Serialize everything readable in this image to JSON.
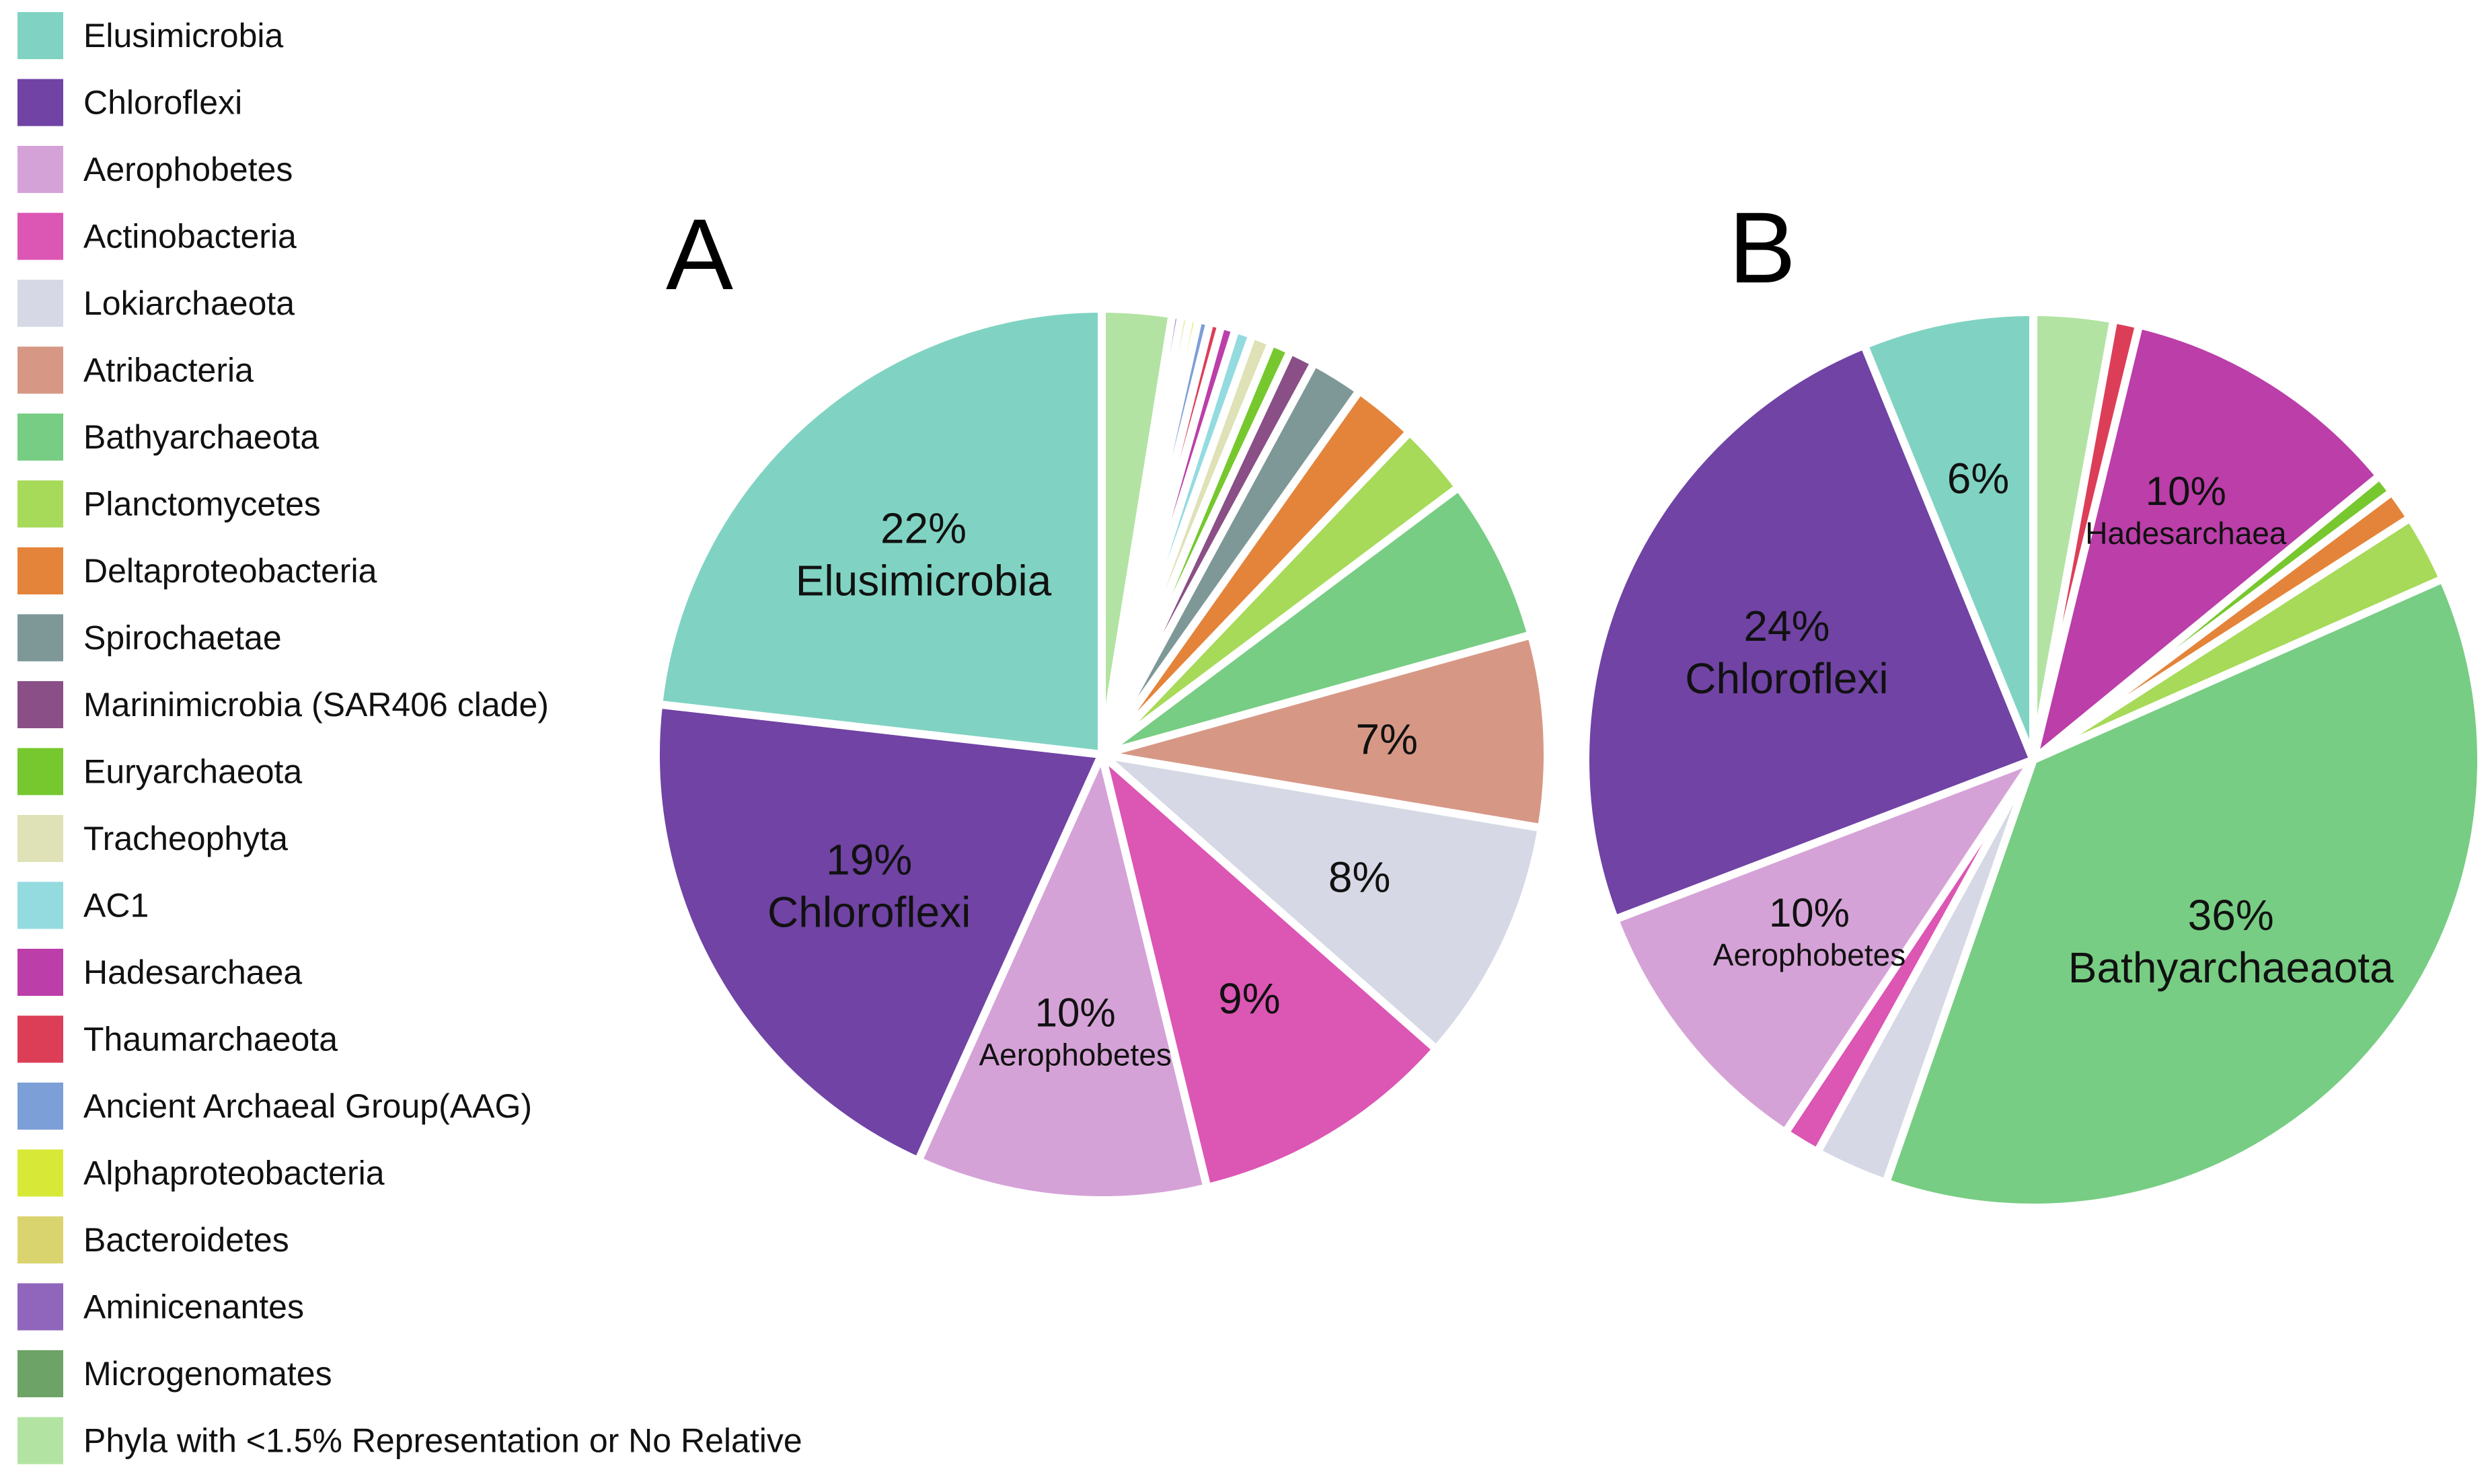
{
  "colors": {
    "Elusimicrobia": "#80d3c2",
    "Chloroflexi": "#7043a4",
    "Aerophobetes": "#d5a2d7",
    "Actinobacteria": "#dc56b4",
    "Lokiarchaeota": "#d6d8e5",
    "Atribacteria": "#d69885",
    "Bathyarchaeota": "#77cd83",
    "Planctomycetes": "#a6da58",
    "Deltaproteobacteria": "#e4843a",
    "Spirochaetae": "#7e9898",
    "Marinimicrobia": "#8a4f86",
    "Euryarchaeota": "#76c82e",
    "Tracheophyta": "#dfe1b6",
    "AC1": "#94dbe0",
    "Hadesarchaea": "#bb3ea9",
    "Thaumarchaeota": "#dc3e58",
    "AAG": "#7d9fd8",
    "Alphaproteobacteria": "#d7e936",
    "Bacteroidetes": "#dad46e",
    "Aminicenantes": "#9066bd",
    "Microgenomates": "#6da366",
    "Other": "#b3e3a3"
  },
  "legend": [
    {
      "label": "Elusimicrobia",
      "color_key": "Elusimicrobia"
    },
    {
      "label": "Chloroflexi",
      "color_key": "Chloroflexi"
    },
    {
      "label": "Aerophobetes",
      "color_key": "Aerophobetes"
    },
    {
      "label": "Actinobacteria",
      "color_key": "Actinobacteria"
    },
    {
      "label": "Lokiarchaeota",
      "color_key": "Lokiarchaeota"
    },
    {
      "label": "Atribacteria",
      "color_key": "Atribacteria"
    },
    {
      "label": "Bathyarchaeota",
      "color_key": "Bathyarchaeota"
    },
    {
      "label": "Planctomycetes",
      "color_key": "Planctomycetes"
    },
    {
      "label": "Deltaproteobacteria",
      "color_key": "Deltaproteobacteria"
    },
    {
      "label": "Spirochaetae",
      "color_key": "Spirochaetae"
    },
    {
      "label": "Marinimicrobia (SAR406 clade)",
      "color_key": "Marinimicrobia"
    },
    {
      "label": "Euryarchaeota",
      "color_key": "Euryarchaeota"
    },
    {
      "label": "Tracheophyta",
      "color_key": "Tracheophyta"
    },
    {
      "label": "AC1",
      "color_key": "AC1"
    },
    {
      "label": "Hadesarchaea",
      "color_key": "Hadesarchaea"
    },
    {
      "label": "Thaumarchaeota",
      "color_key": "Thaumarchaeota"
    },
    {
      "label": "Ancient Archaeal Group(AAG)",
      "color_key": "AAG"
    },
    {
      "label": "Alphaproteobacteria",
      "color_key": "Alphaproteobacteria"
    },
    {
      "label": "Bacteroidetes",
      "color_key": "Bacteroidetes"
    },
    {
      "label": "Aminicenantes",
      "color_key": "Aminicenantes"
    },
    {
      "label": "Microgenomates",
      "color_key": "Microgenomates"
    },
    {
      "label": "Phyla with <1.5% Representation or No Relative",
      "color_key": "Other"
    }
  ],
  "chart_data": [
    {
      "type": "pie",
      "title": "A",
      "start": "12 o'clock, clockwise",
      "slices": [
        {
          "name": "Phyla with <1.5% Representation or No Relative",
          "color_key": "Other",
          "value": 2.4
        },
        {
          "name": "Aminicenantes",
          "color_key": "Aminicenantes",
          "value": 0.3
        },
        {
          "name": "Bacteroidetes",
          "color_key": "Bacteroidetes",
          "value": 0.3
        },
        {
          "name": "Alphaproteobacteria",
          "color_key": "Alphaproteobacteria",
          "value": 0.3
        },
        {
          "name": "Ancient Archaeal Group(AAG)",
          "color_key": "AAG",
          "value": 0.4
        },
        {
          "name": "Thaumarchaeota",
          "color_key": "Thaumarchaeota",
          "value": 0.4
        },
        {
          "name": "Hadesarchaea",
          "color_key": "Hadesarchaea",
          "value": 0.5
        },
        {
          "name": "AC1",
          "color_key": "AC1",
          "value": 0.6
        },
        {
          "name": "Tracheophyta",
          "color_key": "Tracheophyta",
          "value": 0.7
        },
        {
          "name": "Euryarchaeota",
          "color_key": "Euryarchaeota",
          "value": 0.7
        },
        {
          "name": "Marinimicrobia (SAR406 clade)",
          "color_key": "Marinimicrobia",
          "value": 0.9
        },
        {
          "name": "Spirochaetae",
          "color_key": "Spirochaetae",
          "value": 1.8
        },
        {
          "name": "Deltaproteobacteria",
          "color_key": "Deltaproteobacteria",
          "value": 2.2
        },
        {
          "name": "Planctomycetes",
          "color_key": "Planctomycetes",
          "value": 2.5
        },
        {
          "name": "Bathyarchaeota",
          "color_key": "Bathyarchaeota",
          "value": 5.6
        },
        {
          "name": "Atribacteria",
          "color_key": "Atribacteria",
          "value": 6.6,
          "label_pct": "7%"
        },
        {
          "name": "Lokiarchaeota",
          "color_key": "Lokiarchaeota",
          "value": 8.4,
          "label_pct": "8%"
        },
        {
          "name": "Actinobacteria",
          "color_key": "Actinobacteria",
          "value": 9.2,
          "label_pct": "9%"
        },
        {
          "name": "Aerophobetes",
          "color_key": "Aerophobetes",
          "value": 10.0,
          "label_pct": "10%",
          "label_name": "Aerophobetes",
          "label_small": true
        },
        {
          "name": "Chloroflexi",
          "color_key": "Chloroflexi",
          "value": 19.0,
          "label_pct": "19%",
          "label_name": "Chloroflexi"
        },
        {
          "name": "Elusimicrobia",
          "color_key": "Elusimicrobia",
          "value": 22.0,
          "label_pct": "22%",
          "label_name": "Elusimicrobia"
        }
      ]
    },
    {
      "type": "pie",
      "title": "B",
      "start": "12 o'clock, clockwise",
      "slices": [
        {
          "name": "Phyla with <1.5% Representation or No Relative",
          "color_key": "Other",
          "value": 2.8
        },
        {
          "name": "Thaumarchaeota",
          "color_key": "Thaumarchaeota",
          "value": 0.9
        },
        {
          "name": "Hadesarchaea",
          "color_key": "Hadesarchaea",
          "value": 10.0,
          "label_pct": "10%",
          "label_name": "Hadesarchaea",
          "label_small": true
        },
        {
          "name": "Euryarchaeota",
          "color_key": "Euryarchaeota",
          "value": 0.7
        },
        {
          "name": "Deltaproteobacteria",
          "color_key": "Deltaproteobacteria",
          "value": 1.1
        },
        {
          "name": "Planctomycetes",
          "color_key": "Planctomycetes",
          "value": 2.4
        },
        {
          "name": "Bathyarchaeota",
          "color_key": "Bathyarchaeota",
          "value": 36.0,
          "label_pct": "36%",
          "label_name": "Bathyarchaeaota"
        },
        {
          "name": "Lokiarchaeota",
          "color_key": "Lokiarchaeota",
          "value": 2.6
        },
        {
          "name": "Actinobacteria",
          "color_key": "Actinobacteria",
          "value": 1.3
        },
        {
          "name": "Aerophobetes",
          "color_key": "Aerophobetes",
          "value": 9.6,
          "label_pct": "10%",
          "label_name": "Aerophobetes",
          "label_small": true
        },
        {
          "name": "Chloroflexi",
          "color_key": "Chloroflexi",
          "value": 24.0,
          "label_pct": "24%",
          "label_name": "Chloroflexi"
        },
        {
          "name": "Elusimicrobia",
          "color_key": "Elusimicrobia",
          "value": 6.0,
          "label_pct": "6%"
        }
      ]
    }
  ]
}
